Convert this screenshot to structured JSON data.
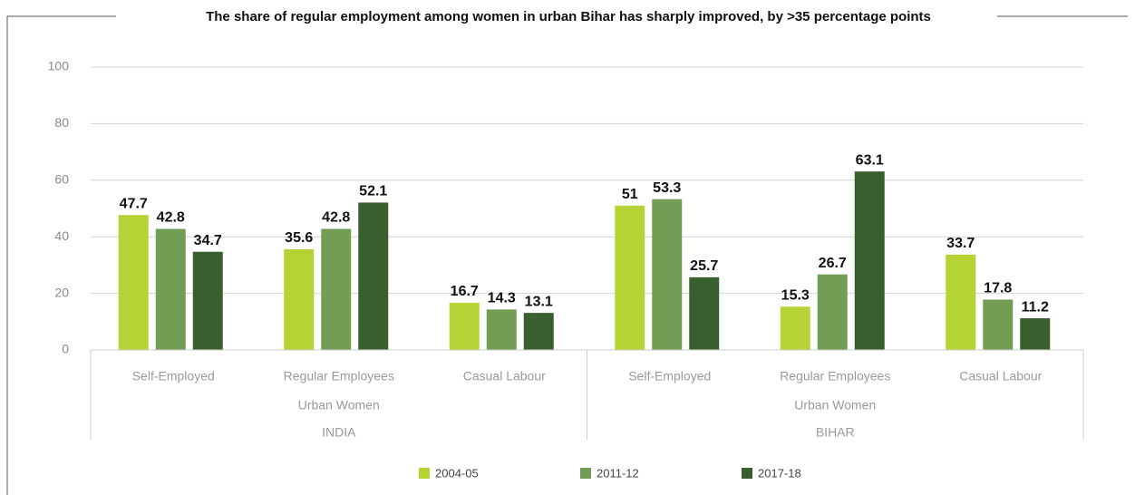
{
  "chart_data": {
    "type": "bar",
    "title": "The share of regular employment among women in urban Bihar has sharply improved, by >35 percentage points",
    "categories": [
      "Self-Employed",
      "Regular Employees",
      "Casual Labour",
      "Self-Employed",
      "Regular Employees",
      "Casual Labour"
    ],
    "groups": [
      {
        "name": "INDIA",
        "sublabel": "Urban Women"
      },
      {
        "name": "BIHAR",
        "sublabel": "Urban Women"
      }
    ],
    "series": [
      {
        "name": "2004-05",
        "color": "#b5d334",
        "values": [
          47.7,
          35.6,
          16.7,
          51,
          15.3,
          33.7
        ]
      },
      {
        "name": "2011-12",
        "color": "#739c55",
        "values": [
          42.8,
          42.8,
          14.3,
          53.3,
          26.7,
          17.8
        ]
      },
      {
        "name": "2017-18",
        "color": "#3a5f2f",
        "values": [
          34.7,
          52.1,
          13.1,
          25.7,
          63.1,
          11.2
        ]
      }
    ],
    "ylim": [
      0,
      100
    ],
    "yticks": [
      0,
      20,
      40,
      60,
      80,
      100
    ],
    "grid": true,
    "legend": "bottom"
  }
}
